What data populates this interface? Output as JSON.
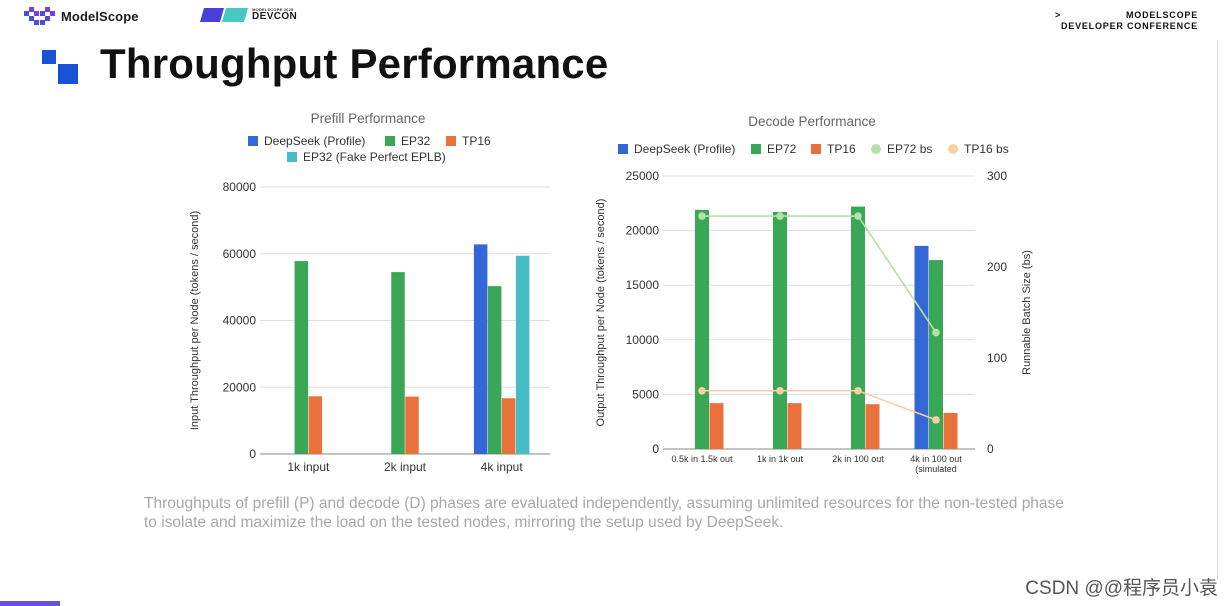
{
  "header": {
    "logo_text": "ModelScope",
    "event_small": "MODELSCOPE 2025",
    "event_name": "DEVCON",
    "conference_arrow": ">",
    "conference_line1": "MODELSCOPE",
    "conference_line2": "DEVELOPER CONFERENCE"
  },
  "page": {
    "title": "Throughput Performance",
    "caption": "Throughputs of prefill (P) and decode (D) phases are evaluated independently, assuming unlimited resources for the non-tested phase to isolate and maximize the load on the tested nodes, mirroring the setup used by DeepSeek.",
    "watermark": "CSDN @@程序员小袁"
  },
  "colors": {
    "blue": "#3367d6",
    "green": "#3aa757",
    "orange": "#e8713c",
    "teal": "#46bdc6",
    "light_green": "#b7dfa8",
    "peach": "#f7cfa3",
    "accent": "#1a52d6"
  },
  "chart_data": [
    {
      "type": "bar",
      "title": "Prefill Performance",
      "ylabel": "Input Throughput per Node (tokens / second)",
      "xlabel": "",
      "categories": [
        "1k input",
        "2k input",
        "4k input"
      ],
      "ylim": [
        0,
        80000
      ],
      "yticks": [
        "0",
        "20000",
        "40000",
        "60000",
        "80000"
      ],
      "grid": true,
      "legend_position": "top",
      "series": [
        {
          "name": "DeepSeek (Profile)",
          "color": "#3367d6",
          "values": [
            null,
            null,
            62800
          ]
        },
        {
          "name": "EP32",
          "color": "#3aa757",
          "values": [
            57800,
            54500,
            50300
          ]
        },
        {
          "name": "TP16",
          "color": "#e8713c",
          "values": [
            17300,
            17200,
            16700
          ]
        },
        {
          "name": "EP32 (Fake Perfect EPLB)",
          "color": "#46bdc6",
          "values": [
            null,
            null,
            59400
          ]
        }
      ]
    },
    {
      "type": "bar",
      "title": "Decode Performance",
      "ylabel": "Output Throughput per Node (tokens / second)",
      "y2label": "Runnable Batch Size (bs)",
      "xlabel": "",
      "categories": [
        "0.5k in 1.5k out",
        "1k in 1k out",
        "2k in 100 out",
        "4k in 100 out"
      ],
      "category_sublabels": [
        "",
        "",
        "",
        "(simulated"
      ],
      "ylim": [
        0,
        25000
      ],
      "yticks": [
        "0",
        "5000",
        "10000",
        "15000",
        "20000",
        "25000"
      ],
      "y2lim": [
        0,
        300
      ],
      "y2ticks": [
        "0",
        "100",
        "200",
        "300"
      ],
      "grid": true,
      "legend_position": "top",
      "series": [
        {
          "name": "DeepSeek (Profile)",
          "color": "#3367d6",
          "kind": "bar",
          "values": [
            null,
            null,
            null,
            18600
          ]
        },
        {
          "name": "EP72",
          "color": "#3aa757",
          "kind": "bar",
          "values": [
            21900,
            21700,
            22200,
            17300
          ]
        },
        {
          "name": "TP16",
          "color": "#e8713c",
          "kind": "bar",
          "values": [
            4200,
            4200,
            4100,
            3300
          ]
        },
        {
          "name": "EP72 bs",
          "color": "#b7dfa8",
          "kind": "line",
          "axis": "y2",
          "values": [
            256,
            256,
            256,
            128
          ]
        },
        {
          "name": "TP16 bs",
          "color": "#f7cfa3",
          "kind": "line",
          "axis": "y2",
          "values": [
            64,
            64,
            64,
            32
          ]
        }
      ]
    }
  ]
}
